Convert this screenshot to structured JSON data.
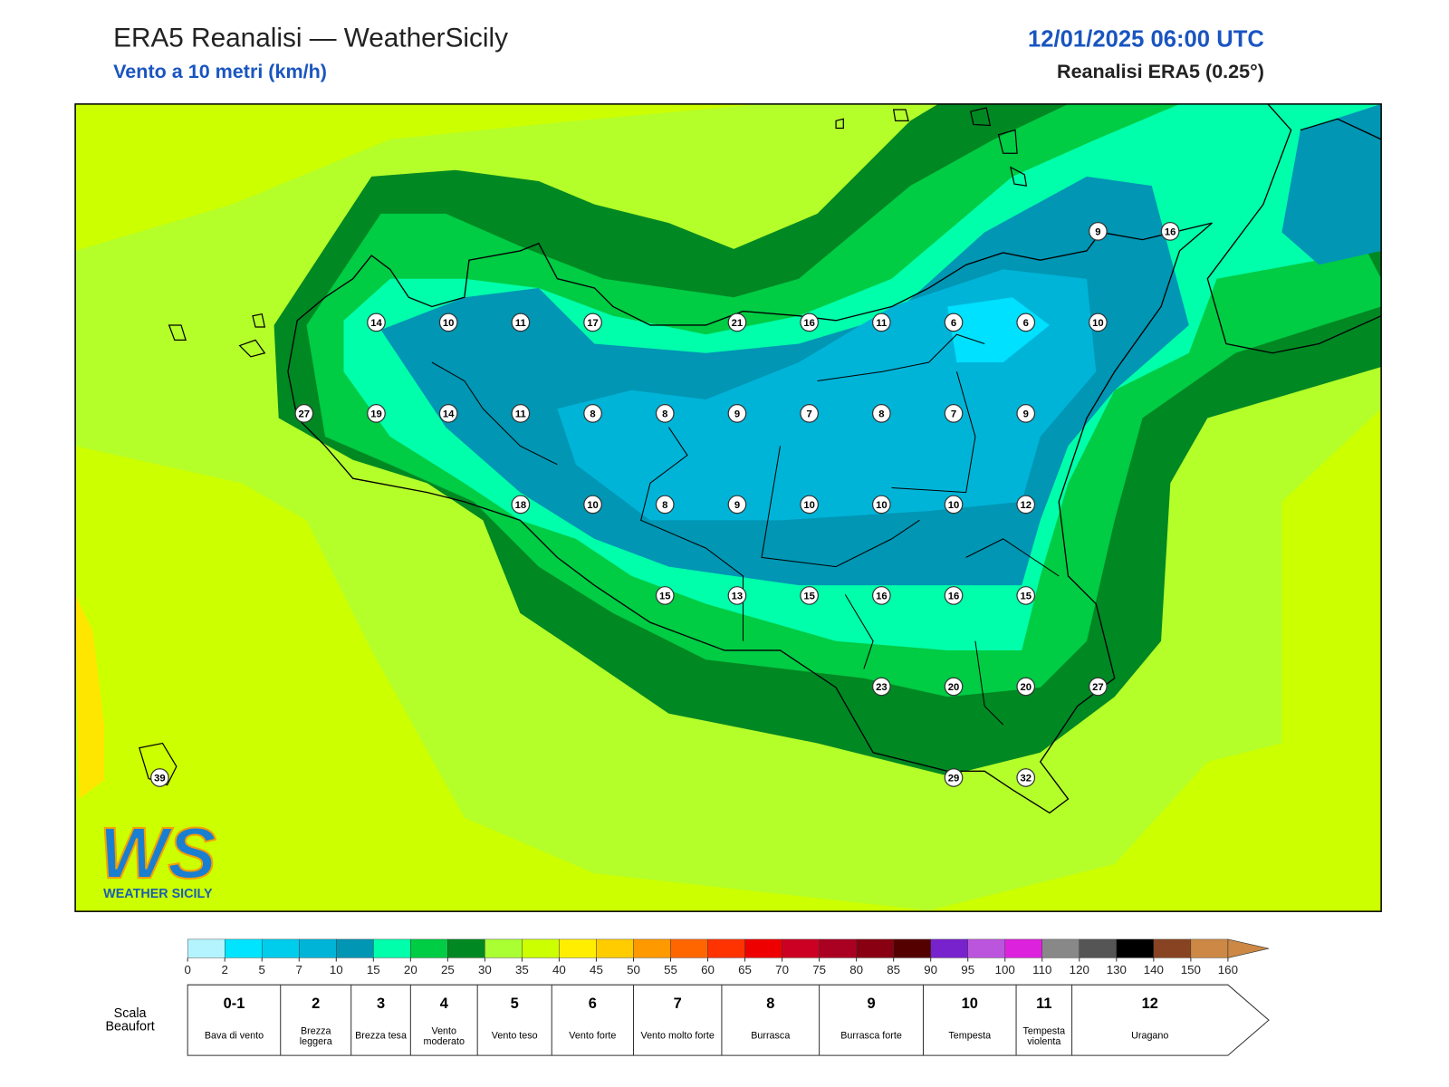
{
  "header": {
    "title": "ERA5 Reanalisi — WeatherSicily",
    "subtitle": "Vento a 10 metri (km/h)",
    "datetime": "12/01/2025 06:00 UTC",
    "source": "Reanalisi ERA5 (0.25°)"
  },
  "map": {
    "station_values": [
      [
        null,
        null,
        null,
        null,
        null,
        null,
        null,
        null,
        null,
        null,
        null,
        null,
        null,
        9,
        16
      ],
      [
        null,
        null,
        null,
        14,
        10,
        11,
        17,
        null,
        21,
        16,
        11,
        6,
        6,
        10,
        null
      ],
      [
        null,
        null,
        27,
        19,
        14,
        11,
        8,
        8,
        9,
        7,
        8,
        7,
        9,
        null,
        null
      ],
      [
        null,
        null,
        null,
        null,
        null,
        18,
        10,
        8,
        9,
        10,
        10,
        10,
        12,
        null,
        null
      ],
      [
        null,
        null,
        null,
        null,
        null,
        null,
        null,
        15,
        13,
        15,
        16,
        16,
        15,
        null,
        null
      ],
      [
        null,
        null,
        null,
        null,
        null,
        null,
        null,
        null,
        null,
        null,
        23,
        20,
        20,
        27,
        null
      ],
      [
        39,
        null,
        null,
        null,
        null,
        null,
        null,
        null,
        null,
        null,
        null,
        29,
        32,
        null,
        null
      ]
    ]
  },
  "colorbar": {
    "levels": [
      0,
      2,
      5,
      7,
      10,
      15,
      20,
      25,
      30,
      35,
      40,
      45,
      50,
      55,
      60,
      65,
      70,
      75,
      80,
      85,
      90,
      95,
      100,
      110,
      120,
      130,
      140,
      150,
      160
    ],
    "colors": [
      "#b4f4ff",
      "#00e4ff",
      "#00ccec",
      "#00b4d8",
      "#0096b4",
      "#00ffaa",
      "#00cc44",
      "#008822",
      "#aaff33",
      "#ccff00",
      "#ffee00",
      "#ffcc00",
      "#ff9900",
      "#ff6600",
      "#ff3300",
      "#ee0000",
      "#cc0022",
      "#aa0022",
      "#880011",
      "#550000",
      "#7722cc",
      "#bb55dd",
      "#dd22dd",
      "#888888",
      "#555555",
      "#000000",
      "#884422",
      "#cc8844"
    ],
    "extend_color": "#cc8844"
  },
  "beaufort": {
    "title": "Scala Beaufort",
    "classes": [
      {
        "force": "0-1",
        "name": "Bava di vento"
      },
      {
        "force": "2",
        "name": "Brezza leggera"
      },
      {
        "force": "3",
        "name": "Brezza tesa"
      },
      {
        "force": "4",
        "name": "Vento moderato"
      },
      {
        "force": "5",
        "name": "Vento teso"
      },
      {
        "force": "6",
        "name": "Vento forte"
      },
      {
        "force": "7",
        "name": "Vento molto forte"
      },
      {
        "force": "8",
        "name": "Burrasca"
      },
      {
        "force": "9",
        "name": "Burrasca forte"
      },
      {
        "force": "10",
        "name": "Tempesta"
      },
      {
        "force": "11",
        "name": "Tempesta violenta"
      },
      {
        "force": "12",
        "name": "Uragano"
      }
    ]
  },
  "logo": {
    "mark": "WS",
    "text": "WEATHER SICILY"
  }
}
